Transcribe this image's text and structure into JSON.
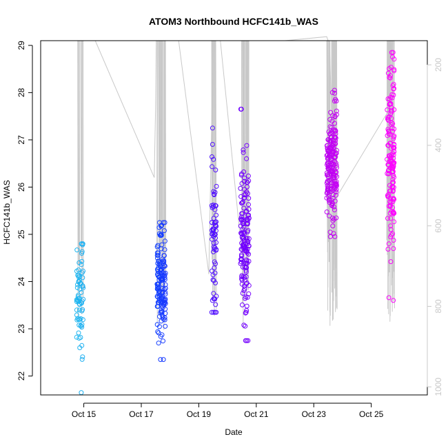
{
  "chart_data": {
    "type": "scatter",
    "title": "ATOM3 Northbound HCFC141b_WAS",
    "xlabel": "Date",
    "ylabel": "HCFC141b_WAS",
    "x_ticks": [
      "Oct 15",
      "Oct 17",
      "Oct 19",
      "Oct 21",
      "Oct 23",
      "Oct 25"
    ],
    "x_tick_days": [
      15,
      17,
      19,
      21,
      23,
      25
    ],
    "xlim_days": [
      13.5,
      26.95
    ],
    "ylim": [
      21.6,
      29.1
    ],
    "y_ticks": [
      22,
      23,
      24,
      25,
      26,
      27,
      28,
      29
    ],
    "right_axis_ticks": [
      200,
      400,
      600,
      800,
      1000
    ],
    "right_axis_lim": [
      1020,
      140
    ],
    "right_axis_color": "#c8c8c8",
    "color_gradient": [
      "#1fb8f0",
      "#1040ff",
      "#6a00ff",
      "#b000f0",
      "#ff00ff"
    ],
    "grid": false,
    "clusters": [
      {
        "day_start": 14.75,
        "day_end": 14.98,
        "y_center": 23.75,
        "y_min": 21.65,
        "y_max": 24.8,
        "count": 70
      },
      {
        "day_start": 17.55,
        "day_end": 17.85,
        "y_center": 24.05,
        "y_min": 22.35,
        "y_max": 25.25,
        "count": 150
      },
      {
        "day_start": 19.45,
        "day_end": 19.62,
        "y_center": 24.9,
        "y_min": 23.35,
        "y_max": 27.25,
        "count": 70
      },
      {
        "day_start": 20.45,
        "day_end": 20.75,
        "y_center": 24.8,
        "y_min": 22.75,
        "y_max": 27.65,
        "count": 150
      },
      {
        "day_start": 23.45,
        "day_end": 23.8,
        "y_center": 26.4,
        "y_min": 24.95,
        "y_max": 28.05,
        "count": 200
      },
      {
        "day_start": 25.55,
        "day_end": 25.8,
        "y_center": 26.6,
        "y_min": 23.6,
        "y_max": 28.85,
        "count": 150
      }
    ],
    "altitude_track": [
      [
        15.4,
        140
      ],
      [
        17.45,
        480
      ],
      [
        17.5,
        300
      ],
      [
        17.52,
        140
      ],
      [
        18.3,
        140
      ],
      [
        19.35,
        720
      ],
      [
        19.5,
        140
      ],
      [
        19.75,
        140
      ],
      [
        20.5,
        670
      ],
      [
        20.6,
        140
      ],
      [
        22.0,
        140
      ],
      [
        23.45,
        130
      ],
      [
        23.55,
        150
      ],
      [
        23.7,
        540
      ],
      [
        25.55,
        320
      ],
      [
        25.7,
        140
      ]
    ]
  }
}
